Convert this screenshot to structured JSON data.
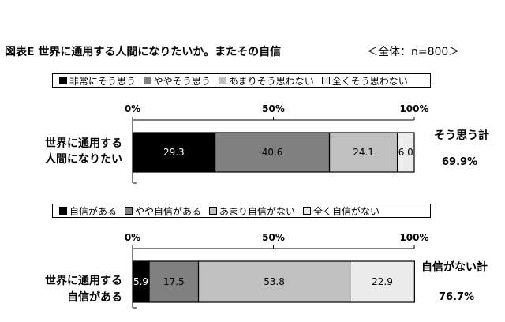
{
  "chart_data": [
    {
      "type": "bar",
      "orientation": "horizontal",
      "stacked": true,
      "title": "図表E 世界に通用する人間になりたいか。またその自信",
      "subtitle": "＜全体：n=800＞",
      "xlim": [
        0,
        100
      ],
      "tick_labels": [
        "0%",
        "50%",
        "100%"
      ],
      "categories": [
        "世界に通用する人間になりたい"
      ],
      "category_lines": [
        "世界に通用する",
        "人間になりたい"
      ],
      "series": [
        {
          "name": "非常にそう思う",
          "values": [
            29.3
          ],
          "color": "#000000",
          "label_color": "#ffffff"
        },
        {
          "name": "ややそう思う",
          "values": [
            40.6
          ],
          "color": "#808080",
          "label_color": "#000000"
        },
        {
          "name": "あまりそう思わない",
          "values": [
            24.1
          ],
          "color": "#c0c0c0",
          "label_color": "#000000"
        },
        {
          "name": "全くそう思わない",
          "values": [
            6.0
          ],
          "color": "#ececec",
          "label_color": "#000000"
        }
      ],
      "value_labels": [
        "29.3",
        "40.6",
        "24.1",
        "6.0"
      ],
      "total_label": "そう思う計",
      "total_value": "69.9%",
      "legend_position": "top"
    },
    {
      "type": "bar",
      "orientation": "horizontal",
      "stacked": true,
      "xlim": [
        0,
        100
      ],
      "tick_labels": [
        "0%",
        "50%",
        "100%"
      ],
      "categories": [
        "世界に通用する自信がある"
      ],
      "category_lines": [
        "世界に通用する",
        "自信がある"
      ],
      "series": [
        {
          "name": "自信がある",
          "values": [
            5.9
          ],
          "color": "#000000",
          "label_color": "#ffffff"
        },
        {
          "name": "やや自信がある",
          "values": [
            17.5
          ],
          "color": "#808080",
          "label_color": "#000000"
        },
        {
          "name": "あまり自信がない",
          "values": [
            53.8
          ],
          "color": "#c0c0c0",
          "label_color": "#000000"
        },
        {
          "name": "全く自信がない",
          "values": [
            22.9
          ],
          "color": "#ececec",
          "label_color": "#000000"
        }
      ],
      "value_labels": [
        "5.9",
        "17.5",
        "53.8",
        "22.9"
      ],
      "total_label": "自信がない計",
      "total_value": "76.7%",
      "legend_position": "top"
    }
  ]
}
